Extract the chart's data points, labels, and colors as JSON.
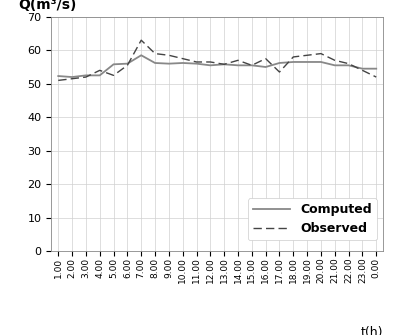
{
  "x_labels": [
    "1.00",
    "2.00",
    "3.00",
    "4.00",
    "5.00",
    "6.00",
    "7.00",
    "8.00",
    "9.00",
    "10.00",
    "11.00",
    "12.00",
    "13.00",
    "14.00",
    "15.00",
    "16.00",
    "17.00",
    "18.00",
    "19.00",
    "20.00",
    "21.00",
    "22.00",
    "23.00",
    "0.00"
  ],
  "x_values": [
    1,
    2,
    3,
    4,
    5,
    6,
    7,
    8,
    9,
    10,
    11,
    12,
    13,
    14,
    15,
    16,
    17,
    18,
    19,
    20,
    21,
    22,
    23,
    24
  ],
  "computed": [
    52.3,
    52.0,
    52.5,
    52.5,
    55.8,
    56.0,
    58.5,
    56.2,
    56.0,
    56.2,
    56.0,
    55.5,
    55.8,
    55.5,
    55.5,
    55.0,
    56.2,
    56.5,
    56.5,
    56.5,
    55.5,
    55.5,
    54.5,
    54.5
  ],
  "observed": [
    51.0,
    51.5,
    52.0,
    54.0,
    52.5,
    55.5,
    63.0,
    59.0,
    58.5,
    57.5,
    56.5,
    56.5,
    55.8,
    57.0,
    55.5,
    57.5,
    53.5,
    58.0,
    58.5,
    59.0,
    57.0,
    56.0,
    54.0,
    52.0
  ],
  "ylabel_text": "Q(m³/s)",
  "xlabel_text": "t(h)",
  "ylim": [
    0,
    70
  ],
  "xlim": [
    0.5,
    24.5
  ],
  "yticks": [
    0,
    10,
    20,
    30,
    40,
    50,
    60,
    70
  ],
  "legend_computed": "Computed",
  "legend_observed": "Observed",
  "computed_color": "#888888",
  "observed_color": "#444444",
  "grid_color": "#d0d0d0",
  "bg_color": "#ffffff"
}
